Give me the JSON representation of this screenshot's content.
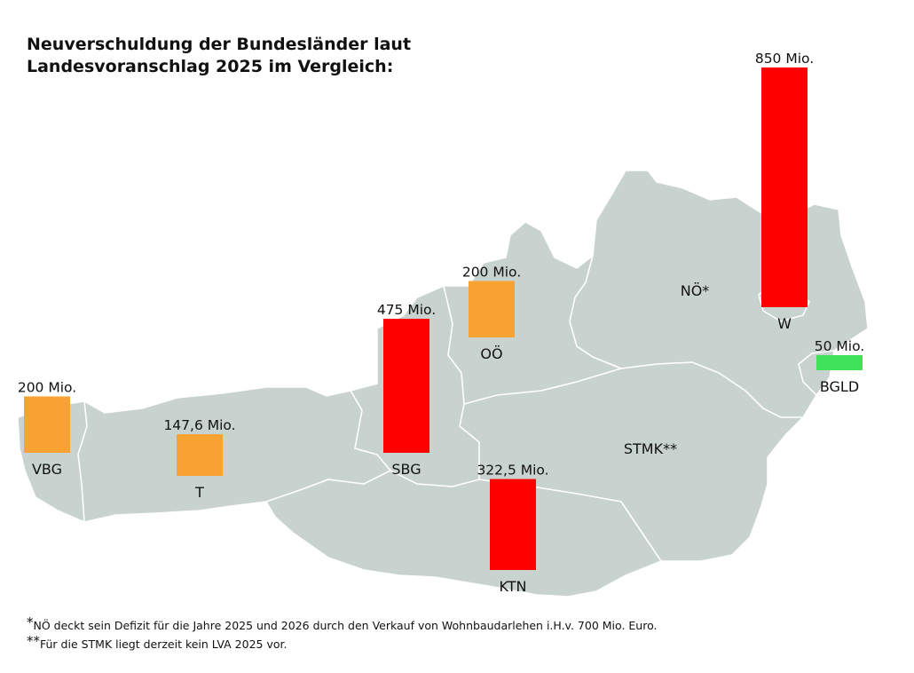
{
  "title_line1": "Neuverschuldung der Bundesländer laut",
  "title_line2": "Landesvoranschlag 2025 im Vergleich:",
  "footnotes": [
    {
      "mark": "*",
      "text": "NÖ deckt sein Defizit für die Jahre 2025 und 2026 durch den Verkauf von Wohnbaudarlehen i.H.v. 700 Mio. Euro."
    },
    {
      "mark": "**",
      "text": "Für die STMK liegt derzeit kein LVA 2025 vor."
    }
  ],
  "colors": {
    "map_fill": "#c8d2cf",
    "map_border": "#ffffff",
    "high": "#ff0000",
    "medium": "#f8a331",
    "low": "#3fe35a"
  },
  "chart_data": {
    "type": "bar",
    "unit": "Mio.",
    "bars": [
      {
        "region": "VBG",
        "value": 200,
        "value_label": "200 Mio.",
        "color": "#f8a331"
      },
      {
        "region": "T",
        "value": 147.6,
        "value_label": "147,6 Mio.",
        "color": "#f8a331"
      },
      {
        "region": "SBG",
        "value": 475,
        "value_label": "475 Mio.",
        "color": "#ff0000"
      },
      {
        "region": "OÖ",
        "value": 200,
        "value_label": "200 Mio.",
        "color": "#f8a331"
      },
      {
        "region": "KTN",
        "value": 322.5,
        "value_label": "322,5 Mio.",
        "color": "#ff0000"
      },
      {
        "region": "W",
        "value": 850,
        "value_label": "850 Mio.",
        "color": "#ff0000"
      },
      {
        "region": "BGLD",
        "value": 50,
        "value_label": "50 Mio.",
        "color": "#3fe35a"
      }
    ],
    "unlabelled_regions": [
      "NÖ*",
      "STMK**"
    ]
  }
}
